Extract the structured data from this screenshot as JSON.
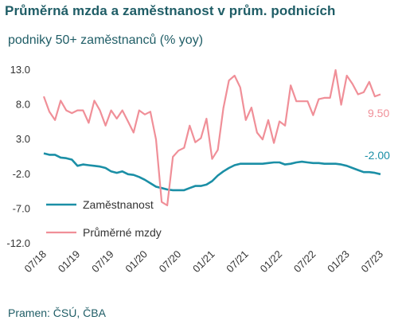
{
  "title": "Průměrná mzda a zaměstnanost v prům. podnicích",
  "subtitle": "podniky 50+ zaměstnanců (% yoy)",
  "source": "Pramen: ČSÚ, ČBA",
  "colors": {
    "employment": "#1b8fa6",
    "wages": "#f08f98",
    "text": "#1f5d66"
  },
  "chart_data": {
    "type": "line",
    "ylim": [
      -12.0,
      13.0
    ],
    "yticks": [
      "13.0",
      "8.0",
      "3.0",
      "-2.0",
      "-7.0",
      "-12.0"
    ],
    "ytick_values": [
      13.0,
      8.0,
      3.0,
      -2.0,
      -7.0,
      -12.0
    ],
    "xticks": [
      "07/18",
      "01/19",
      "07/19",
      "01/20",
      "07/20",
      "01/21",
      "07/21",
      "01/22",
      "07/22",
      "01/23",
      "07/23"
    ],
    "x": [
      "07/18",
      "08/18",
      "09/18",
      "10/18",
      "11/18",
      "12/18",
      "01/19",
      "02/19",
      "03/19",
      "04/19",
      "05/19",
      "06/19",
      "07/19",
      "08/19",
      "09/19",
      "10/19",
      "11/19",
      "12/19",
      "01/20",
      "02/20",
      "03/20",
      "04/20",
      "05/20",
      "06/20",
      "07/20",
      "08/20",
      "09/20",
      "10/20",
      "11/20",
      "12/20",
      "01/21",
      "02/21",
      "03/21",
      "04/21",
      "05/21",
      "06/21",
      "07/21",
      "08/21",
      "09/21",
      "10/21",
      "11/21",
      "12/21",
      "01/22",
      "02/22",
      "03/22",
      "04/22",
      "05/22",
      "06/22",
      "07/22",
      "08/22",
      "09/22",
      "10/22",
      "11/22",
      "12/22",
      "01/23",
      "02/23",
      "03/23",
      "04/23",
      "05/23",
      "06/23",
      "07/23"
    ],
    "series": [
      {
        "name": "Zaměstnanost",
        "end_label": "-2.00",
        "values": [
          1.0,
          0.8,
          0.8,
          0.4,
          0.3,
          0.1,
          -0.8,
          -0.6,
          -0.7,
          -0.8,
          -0.9,
          -1.1,
          -1.6,
          -1.8,
          -1.6,
          -2.0,
          -2.1,
          -2.4,
          -2.8,
          -3.3,
          -3.8,
          -4.0,
          -4.2,
          -4.3,
          -4.3,
          -4.3,
          -4.0,
          -3.7,
          -3.7,
          -3.5,
          -3.0,
          -2.2,
          -1.6,
          -1.1,
          -0.7,
          -0.5,
          -0.5,
          -0.5,
          -0.5,
          -0.5,
          -0.4,
          -0.3,
          -0.3,
          -0.6,
          -0.5,
          -0.3,
          -0.2,
          -0.3,
          -0.4,
          -0.4,
          -0.5,
          -0.5,
          -0.5,
          -0.6,
          -0.8,
          -1.1,
          -1.4,
          -1.7,
          -1.7,
          -1.8,
          -2.0
        ]
      },
      {
        "name": "Průměrné mzdy",
        "end_label": "9.50",
        "values": [
          9.2,
          7.0,
          5.8,
          8.6,
          7.2,
          6.8,
          7.2,
          7.2,
          5.4,
          8.6,
          7.2,
          5.0,
          7.2,
          6.0,
          7.2,
          5.6,
          4.0,
          7.2,
          6.6,
          7.0,
          3.0,
          -6.0,
          -6.5,
          0.5,
          1.4,
          1.8,
          5.0,
          2.6,
          3.2,
          6.0,
          0.2,
          1.5,
          7.5,
          11.5,
          12.2,
          10.5,
          5.8,
          7.6,
          4.0,
          3.0,
          5.8,
          2.5,
          5.6,
          5.0,
          10.8,
          8.5,
          8.5,
          8.5,
          6.5,
          8.8,
          9.0,
          9.0,
          13.0,
          8.0,
          12.2,
          11.0,
          9.5,
          9.8,
          11.3,
          9.2,
          9.5
        ]
      }
    ],
    "legend": "inside-lower-left"
  }
}
